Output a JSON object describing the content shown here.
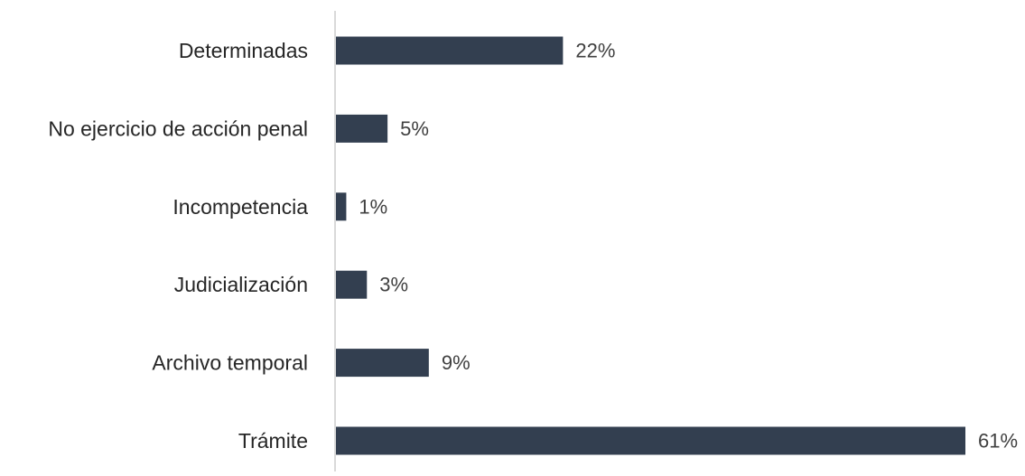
{
  "chart_data": {
    "type": "bar",
    "orientation": "horizontal",
    "categories": [
      "Determinadas",
      "No ejercicio de acción penal",
      "Incompetencia",
      "Judicialización",
      "Archivo temporal",
      "Trámite"
    ],
    "values": [
      22,
      5,
      1,
      3,
      9,
      61
    ],
    "value_labels": [
      "22%",
      "5%",
      "1%",
      "3%",
      "9%",
      "61%"
    ],
    "unit": "%",
    "xlim": [
      0,
      61
    ],
    "title": "",
    "xlabel": "",
    "ylabel": "",
    "grid": false,
    "legend": "none",
    "colors": {
      "bar": "#333f50",
      "axis": "#d9d9d9",
      "category_text": "#262626",
      "value_text": "#404040"
    }
  }
}
